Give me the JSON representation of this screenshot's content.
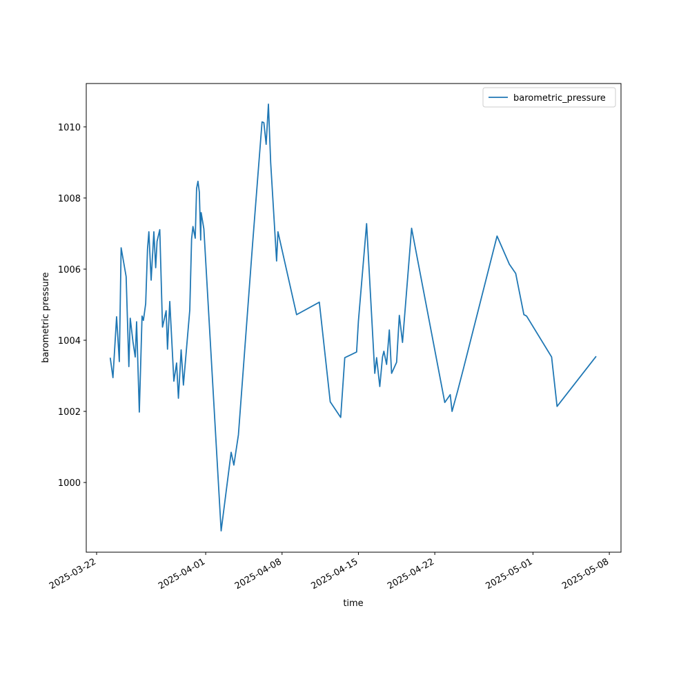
{
  "chart_data": {
    "type": "line",
    "x_label": "time",
    "y_label": "barometric pressure",
    "xlim": [
      "2025-03-21T01:15",
      "2025-05-09T01:40"
    ],
    "xticks": [
      "2025-03-22",
      "2025-04-01",
      "2025-04-08",
      "2025-04-15",
      "2025-04-22",
      "2025-05-01",
      "2025-05-08"
    ],
    "ylim": [
      998.04,
      1011.22
    ],
    "yticks": [
      1000,
      1002,
      1004,
      1006,
      1008,
      1010
    ],
    "grid": false,
    "legend": "upper right",
    "x": [
      "2025-03-23T06:00",
      "2025-03-23T12:00",
      "2025-03-23T20:00",
      "2025-03-24T02:00",
      "2025-03-24T06:00",
      "2025-03-24T17:00",
      "2025-03-24T23:00",
      "2025-03-25T02:00",
      "2025-03-25T08:00",
      "2025-03-25T13:00",
      "2025-03-25T16:00",
      "2025-03-25T22:00",
      "2025-03-26T04:00",
      "2025-03-26T07:00",
      "2025-03-26T12:00",
      "2025-03-26T16:00",
      "2025-03-26T19:00",
      "2025-03-27T00:00",
      "2025-03-27T06:00",
      "2025-03-27T10:00",
      "2025-03-27T13:00",
      "2025-03-27T19:00",
      "2025-03-28T01:00",
      "2025-03-28T09:00",
      "2025-03-28T12:00",
      "2025-03-28T17:00",
      "2025-03-29T02:00",
      "2025-03-29T08:00",
      "2025-03-29T12:00",
      "2025-03-29T18:00",
      "2025-03-29T23:00",
      "2025-03-30T13:00",
      "2025-03-30T17:00",
      "2025-03-30T20:00",
      "2025-03-31T01:00",
      "2025-03-31T04:00",
      "2025-03-31T07:00",
      "2025-03-31T10:00",
      "2025-03-31T13:00",
      "2025-03-31T14:00",
      "2025-03-31T20:00",
      "2025-04-02T10:00",
      "2025-04-03T08:00",
      "2025-04-03T14:00",
      "2025-04-04T00:00",
      "2025-04-05T07:00",
      "2025-04-06T04:00",
      "2025-04-06T08:00",
      "2025-04-06T13:00",
      "2025-04-06T18:00",
      "2025-04-06T23:00",
      "2025-04-07T12:00",
      "2025-04-07T15:00",
      "2025-04-09T08:00",
      "2025-04-11T10:00",
      "2025-04-12T10:00",
      "2025-04-13T09:00",
      "2025-04-13T18:00",
      "2025-04-14T20:00",
      "2025-04-15T00:00",
      "2025-04-15T18:00",
      "2025-04-16T12:00",
      "2025-04-16T16:00",
      "2025-04-16T23:00",
      "2025-04-17T05:00",
      "2025-04-17T08:00",
      "2025-04-17T14:00",
      "2025-04-17T20:00",
      "2025-04-18T01:00",
      "2025-04-18T12:00",
      "2025-04-18T18:00",
      "2025-04-19T01:00",
      "2025-04-19T21:00",
      "2025-04-22T22:00",
      "2025-04-23T10:00",
      "2025-04-23T14:00",
      "2025-04-24T02:00",
      "2025-04-24T15:00",
      "2025-04-27T17:00",
      "2025-04-28T20:00",
      "2025-04-29T10:00",
      "2025-04-30T04:00",
      "2025-04-30T10:00",
      "2025-05-02T17:00",
      "2025-05-03T05:00",
      "2025-05-06T19:00"
    ],
    "series": [
      {
        "name": "barometric_pressure",
        "color": "#1f77b4",
        "values": [
          1003.51,
          1002.95,
          1004.66,
          1003.4,
          1006.6,
          1005.79,
          1003.26,
          1004.62,
          1003.96,
          1003.53,
          1004.52,
          1001.98,
          1004.68,
          1004.56,
          1005.03,
          1006.56,
          1007.05,
          1005.69,
          1007.05,
          1006.04,
          1006.78,
          1007.11,
          1004.37,
          1004.83,
          1003.75,
          1005.09,
          1002.85,
          1003.36,
          1002.37,
          1003.73,
          1002.74,
          1004.85,
          1006.85,
          1007.2,
          1006.87,
          1008.27,
          1008.47,
          1008.17,
          1006.82,
          1007.59,
          1007.13,
          998.64,
          1000.85,
          1000.49,
          1001.34,
          1006.68,
          1010.14,
          1010.12,
          1009.51,
          1010.64,
          1008.99,
          1006.23,
          1007.05,
          1004.72,
          1005.07,
          1002.27,
          1001.83,
          1003.51,
          1003.67,
          1004.54,
          1007.28,
          1003.07,
          1003.51,
          1002.7,
          1003.53,
          1003.69,
          1003.32,
          1004.29,
          1003.07,
          1003.38,
          1004.7,
          1003.94,
          1007.15,
          1002.25,
          1002.47,
          1002.0,
          1002.56,
          1003.2,
          1006.93,
          1006.14,
          1005.88,
          1004.72,
          1004.68,
          1003.53,
          1002.14,
          1003.55
        ]
      }
    ]
  }
}
